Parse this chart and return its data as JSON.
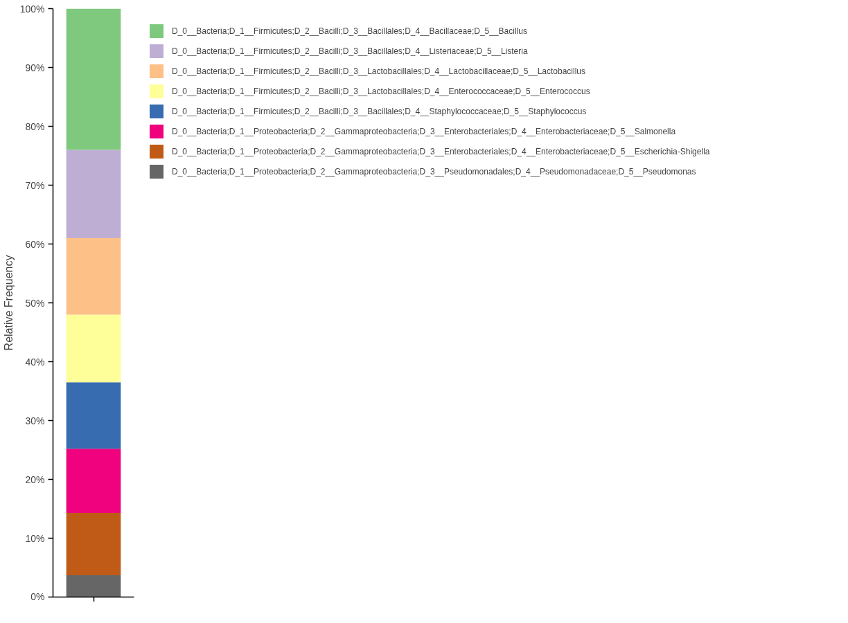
{
  "chart_data": {
    "type": "bar",
    "stacked": true,
    "ylabel": "Relative Frequency",
    "categories": [
      null
    ],
    "series": [
      {
        "name": "D_0__Bacteria;D_1__Proteobacteria;D_2__Gammaproteobacteria;D_3__Pseudomonadales;D_4__Pseudomonadaceae;D_5__Pseudomonas",
        "color": "#666666",
        "values": [
          3.7
        ]
      },
      {
        "name": "D_0__Bacteria;D_1__Proteobacteria;D_2__Gammaproteobacteria;D_3__Enterobacteriales;D_4__Enterobacteriaceae;D_5__Escherichia-Shigella",
        "color": "#bf5b17",
        "values": [
          10.6
        ]
      },
      {
        "name": "D_0__Bacteria;D_1__Proteobacteria;D_2__Gammaproteobacteria;D_3__Enterobacteriales;D_4__Enterobacteriaceae;D_5__Salmonella",
        "color": "#f0027f",
        "values": [
          10.9
        ]
      },
      {
        "name": "D_0__Bacteria;D_1__Firmicutes;D_2__Bacilli;D_3__Bacillales;D_4__Staphylococcaceae;D_5__Staphylococcus",
        "color": "#386cb0",
        "values": [
          11.3
        ]
      },
      {
        "name": "D_0__Bacteria;D_1__Firmicutes;D_2__Bacilli;D_3__Lactobacillales;D_4__Enterococcaceae;D_5__Enterococcus",
        "color": "#ffff99",
        "values": [
          11.5
        ]
      },
      {
        "name": "D_0__Bacteria;D_1__Firmicutes;D_2__Bacilli;D_3__Lactobacillales;D_4__Lactobacillaceae;D_5__Lactobacillus",
        "color": "#fdc086",
        "values": [
          13.0
        ]
      },
      {
        "name": "D_0__Bacteria;D_1__Firmicutes;D_2__Bacilli;D_3__Bacillales;D_4__Listeriaceae;D_5__Listeria",
        "color": "#beaed4",
        "values": [
          15.0
        ]
      },
      {
        "name": "D_0__Bacteria;D_1__Firmicutes;D_2__Bacilli;D_3__Bacillales;D_4__Bacillaceae;D_5__Bacillus",
        "color": "#7fc97f",
        "values": [
          24.0
        ]
      }
    ],
    "ylim": [
      0,
      100
    ],
    "yticks": [
      {
        "value": 0,
        "label": "0%"
      },
      {
        "value": 10,
        "label": "10%"
      },
      {
        "value": 20,
        "label": "20%"
      },
      {
        "value": 30,
        "label": "30%"
      },
      {
        "value": 40,
        "label": "40%"
      },
      {
        "value": 50,
        "label": "50%"
      },
      {
        "value": 60,
        "label": "60%"
      },
      {
        "value": 70,
        "label": "70%"
      },
      {
        "value": 80,
        "label": "80%"
      },
      {
        "value": 90,
        "label": "90%"
      },
      {
        "value": 100,
        "label": "100%"
      }
    ],
    "tick_labels": "y",
    "legend": "top right",
    "grid": false
  }
}
